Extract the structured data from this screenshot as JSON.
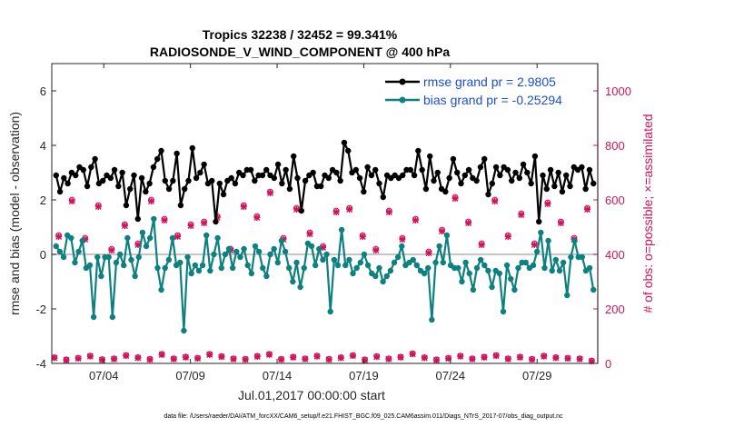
{
  "chart_data": {
    "type": "line",
    "title": "Tropics 32238 / 32452 = 99.341%",
    "subtitle": "RADIOSONDE_V_WIND_COMPONENT @ 400 hPa",
    "xlabel": "Jul.01,2017 00:00:00 start",
    "ylabel": "rmse and bias (model - observation)",
    "y2label": "# of obs: o=possible; ×=assimilated",
    "footnote": "data file: /Users/raeder/DAI/ATM_forcXX/CAM6_setup/f.e21.FHIST_BGC.f09_025.CAM6assim.011/Diags_NTrS_2017-07/obs_diag_output.nc",
    "xlim": [
      0,
      31.5
    ],
    "ylim": [
      -4,
      7
    ],
    "y2lim": [
      0,
      1100
    ],
    "xticks": [
      3,
      8,
      13,
      18,
      23,
      28
    ],
    "xticklabels": [
      "07/04",
      "07/09",
      "07/14",
      "07/19",
      "07/24",
      "07/29"
    ],
    "yticks": [
      -4,
      -2,
      0,
      2,
      4,
      6
    ],
    "yticklabels": [
      "-4",
      "-2",
      "0",
      "2",
      "4",
      "6"
    ],
    "y2ticks": [
      0,
      200,
      400,
      600,
      800,
      1000
    ],
    "y2ticklabels": [
      "0",
      "200",
      "400",
      "600",
      "800",
      "1000"
    ],
    "colors": {
      "rmse": "#000000",
      "bias": "#0f8080",
      "obs": "#d1135b",
      "zero": "#b3b3b3"
    },
    "series": [
      {
        "name": "rmse",
        "legend": "rmse grand pr = 2.9805",
        "values": [
          2.9,
          2.3,
          2.8,
          2.6,
          3.0,
          2.9,
          3.2,
          3.1,
          2.5,
          3.2,
          3.5,
          2.6,
          2.7,
          2.9,
          2.8,
          3.1,
          2.5,
          3.0,
          1.8,
          2.4,
          2.9,
          1.3,
          2.8,
          2.3,
          2.6,
          3.2,
          3.5,
          3.8,
          2.7,
          2.4,
          2.7,
          3.7,
          1.8,
          2.4,
          2.7,
          3.9,
          2.8,
          3.0,
          3.3,
          2.6,
          2.7,
          1.2,
          2.6,
          2.2,
          2.7,
          2.8,
          2.6,
          3.0,
          2.9,
          3.1,
          3.1,
          2.7,
          2.9,
          2.9,
          3.1,
          2.9,
          2.8,
          3.3,
          2.6,
          3.1,
          2.4,
          3.6,
          2.8,
          1.6,
          2.7,
          2.9,
          3.0,
          2.5,
          2.5,
          2.9,
          2.8,
          3.1,
          3.0,
          2.7,
          4.1,
          3.8,
          3.0,
          3.1,
          2.8,
          2.3,
          3.2,
          2.9,
          3.1,
          2.6,
          2.1,
          2.9,
          2.8,
          2.9,
          2.8,
          2.9,
          3.1,
          3.1,
          2.9,
          3.8,
          3.1,
          2.4,
          3.6,
          2.7,
          3.0,
          2.4,
          2.3,
          2.8,
          3.5,
          3.0,
          2.6,
          2.9,
          3.1,
          2.8,
          2.7,
          3.2,
          3.5,
          2.2,
          2.6,
          3.2,
          2.9,
          3.2,
          3.1,
          2.7,
          3.0,
          2.8,
          3.3,
          3.0,
          2.6,
          3.6,
          1.2,
          2.9,
          2.4,
          3.1,
          2.5,
          3.0,
          2.3,
          2.9,
          2.5,
          3.2,
          3.1,
          3.2,
          2.4,
          3.1,
          2.6
        ]
      },
      {
        "name": "bias",
        "legend": "bias grand pr = -0.25294",
        "values": [
          0.3,
          0.1,
          -0.1,
          0.7,
          0.6,
          -0.3,
          0.1,
          0.5,
          -0.5,
          -0.4,
          -2.3,
          -0.1,
          -0.8,
          -0.1,
          -0.1,
          -2.3,
          -0.3,
          0.0,
          -0.4,
          0.6,
          -0.2,
          -0.8,
          -0.1,
          0.8,
          0.3,
          0.6,
          1.3,
          -0.5,
          -1.3,
          -0.5,
          -0.2,
          0.6,
          -0.4,
          -0.3,
          -2.8,
          -0.1,
          -0.7,
          -0.4,
          -0.6,
          -0.4,
          0.7,
          -0.6,
          0.0,
          0.6,
          -0.5,
          0.0,
          0.2,
          -0.5,
          0.1,
          -0.1,
          0.2,
          -0.4,
          -0.7,
          0.3,
          0.1,
          -0.5,
          -0.8,
          0.0,
          0.2,
          -0.3,
          0.5,
          0.1,
          -0.5,
          -1.0,
          -0.3,
          -1.2,
          -0.5,
          0.4,
          0.3,
          -0.4,
          0.2,
          -0.2,
          0.0,
          -2.1,
          -0.2,
          -0.4,
          0.9,
          -0.4,
          -0.2,
          -0.7,
          -0.5,
          -0.3,
          0.0,
          -0.4,
          -0.7,
          -0.8,
          -0.5,
          -1.0,
          -0.8,
          -0.6,
          -0.3,
          -0.1,
          0.3,
          -0.4,
          -0.3,
          -0.2,
          -0.4,
          -0.6,
          -0.7,
          -0.5,
          -2.4,
          -0.3,
          0.3,
          -0.3,
          0.7,
          -0.4,
          -0.5,
          -0.5,
          -1.0,
          -0.3,
          -0.7,
          -1.3,
          -0.5,
          -0.2,
          -0.4,
          -0.6,
          -1.2,
          -0.6,
          -0.7,
          -2.1,
          -0.4,
          -0.9,
          -1.3,
          -0.5,
          -0.3,
          -0.3,
          -0.5,
          -0.4,
          0.1,
          0.8,
          -0.5,
          0.5,
          -0.6,
          -0.2,
          -0.6,
          -0.3,
          -1.5,
          -0.1,
          0.5,
          -0.1,
          -0.1,
          -0.6,
          -0.5,
          -1.3
        ]
      },
      {
        "name": "obs_possible_high",
        "marker": "o",
        "values": [
          470,
          600,
          460,
          580,
          420,
          510,
          440,
          600,
          530,
          470,
          510,
          520,
          540,
          420,
          580,
          540,
          630,
          460,
          570,
          480,
          430,
          560,
          570,
          470,
          420,
          560,
          460,
          530,
          410,
          490,
          610,
          520,
          440,
          600,
          470,
          550,
          440,
          590,
          520,
          460,
          570
        ]
      },
      {
        "name": "obs_assimilated_high",
        "marker": "x",
        "values": [
          465,
          595,
          455,
          575,
          415,
          505,
          435,
          595,
          525,
          465,
          505,
          515,
          535,
          415,
          575,
          535,
          625,
          455,
          565,
          475,
          425,
          555,
          565,
          465,
          415,
          555,
          455,
          525,
          405,
          485,
          605,
          515,
          435,
          595,
          465,
          545,
          435,
          585,
          515,
          455,
          565
        ]
      },
      {
        "name": "obs_possible_low",
        "marker": "o",
        "values": [
          22,
          14,
          20,
          28,
          15,
          18,
          30,
          22,
          16,
          34,
          18,
          24,
          20,
          34,
          26,
          18,
          16,
          27,
          34,
          16,
          24,
          18,
          28,
          16,
          22,
          30,
          14,
          26,
          18,
          24,
          36,
          22,
          14,
          20,
          28,
          18,
          24,
          30,
          18,
          24,
          16,
          28,
          22,
          20,
          18,
          10
        ]
      },
      {
        "name": "obs_assimilated_low",
        "marker": "x",
        "values": [
          20,
          12,
          18,
          26,
          13,
          16,
          28,
          20,
          14,
          32,
          16,
          22,
          18,
          32,
          24,
          16,
          14,
          25,
          32,
          14,
          22,
          16,
          26,
          14,
          20,
          28,
          12,
          24,
          16,
          22,
          34,
          20,
          12,
          18,
          26,
          16,
          22,
          28,
          16,
          22,
          14,
          26,
          20,
          18,
          16,
          8
        ]
      }
    ]
  }
}
